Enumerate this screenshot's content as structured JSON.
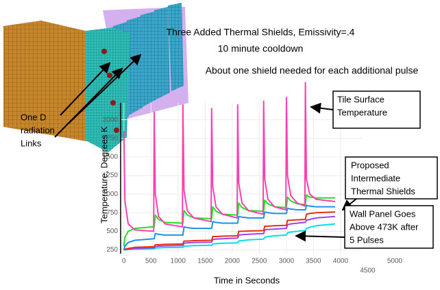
{
  "chart_data": {
    "type": "line",
    "title": "Three Added Thermal Shields, Emissivity=.4",
    "subtitle": "10 minute cooldown",
    "note": "About one shield needed for each additional pulse",
    "y_label": "Temperature, Degrees K",
    "x_label": "Time in Seconds",
    "annotations": [
      {
        "lines": [
          "Tile Surface",
          "Temperature"
        ]
      },
      {
        "lines": [
          "Proposed",
          "Intermediate",
          "Thermal Shields"
        ]
      },
      {
        "lines": [
          "Wall Panel Goes",
          "Above 473K after",
          "5 Pulses"
        ]
      },
      {
        "lines": [
          "One D",
          "radiation",
          "Links"
        ]
      }
    ],
    "x": [
      0,
      20,
      80,
      200,
      550,
      560,
      580,
      640,
      760,
      1080,
      1090,
      1110,
      1170,
      1290,
      1610,
      1620,
      1640,
      1700,
      1820,
      2090,
      2100,
      2120,
      2180,
      2300,
      2570,
      2580,
      2600,
      2660,
      2780,
      2990,
      3000,
      3020,
      3080,
      3200,
      3340,
      3350,
      3370,
      3430,
      3550,
      3900
    ],
    "series": [
      {
        "color": "#00e0e8",
        "values": [
          250,
          252,
          255,
          260,
          265,
          265,
          275,
          278,
          282,
          285,
          285,
          300,
          303,
          308,
          312,
          312,
          330,
          335,
          340,
          345,
          345,
          370,
          375,
          385,
          395,
          395,
          420,
          430,
          440,
          450,
          450,
          480,
          490,
          500,
          510,
          510,
          540,
          555,
          575,
          600
        ]
      },
      {
        "color": "#a040f0",
        "values": [
          250,
          255,
          260,
          270,
          280,
          280,
          295,
          300,
          305,
          310,
          310,
          340,
          345,
          350,
          355,
          355,
          390,
          395,
          400,
          410,
          410,
          450,
          455,
          460,
          470,
          470,
          520,
          525,
          530,
          540,
          540,
          590,
          600,
          610,
          620,
          620,
          650,
          660,
          680,
          700
        ]
      },
      {
        "color": "#e83010",
        "values": [
          250,
          260,
          270,
          285,
          295,
          295,
          320,
          320,
          325,
          330,
          330,
          370,
          370,
          375,
          380,
          380,
          430,
          430,
          435,
          440,
          440,
          500,
          500,
          505,
          510,
          510,
          570,
          570,
          575,
          580,
          580,
          650,
          650,
          655,
          660,
          660,
          730,
          740,
          750,
          760
        ]
      },
      {
        "color": "#1e90e8",
        "values": [
          250,
          300,
          350,
          380,
          400,
          400,
          470,
          460,
          450,
          450,
          450,
          560,
          550,
          540,
          540,
          540,
          630,
          620,
          610,
          610,
          610,
          700,
          690,
          680,
          680,
          680,
          760,
          750,
          740,
          740,
          740,
          810,
          800,
          790,
          790,
          790,
          850,
          840,
          830,
          830
        ]
      },
      {
        "color": "#22dd22",
        "values": [
          300,
          420,
          500,
          540,
          560,
          560,
          720,
          660,
          620,
          610,
          610,
          780,
          720,
          680,
          670,
          670,
          830,
          770,
          730,
          720,
          720,
          880,
          820,
          780,
          770,
          770,
          920,
          870,
          830,
          820,
          820,
          960,
          910,
          870,
          860,
          860,
          990,
          960,
          950,
          950
        ]
      },
      {
        "color": "#ff3fb0",
        "values": [
          1850,
          900,
          600,
          520,
          500,
          2100,
          1000,
          700,
          600,
          560,
          2200,
          1050,
          780,
          680,
          630,
          2150,
          1100,
          830,
          730,
          680,
          2200,
          1150,
          880,
          780,
          730,
          2250,
          1200,
          930,
          830,
          790,
          2300,
          1250,
          980,
          880,
          840,
          2500,
          1200,
          1000,
          930,
          900
        ]
      }
    ],
    "xlim": [
      -60,
      5000
    ],
    "xticks": [
      0,
      500,
      1000,
      1500,
      2000,
      2500,
      3000,
      3500,
      4000,
      4500,
      5000
    ],
    "ylim": [
      200,
      2550
    ],
    "yticks": [
      250,
      500,
      750,
      1000,
      1250,
      1500,
      1750,
      2000
    ],
    "grid": true
  }
}
